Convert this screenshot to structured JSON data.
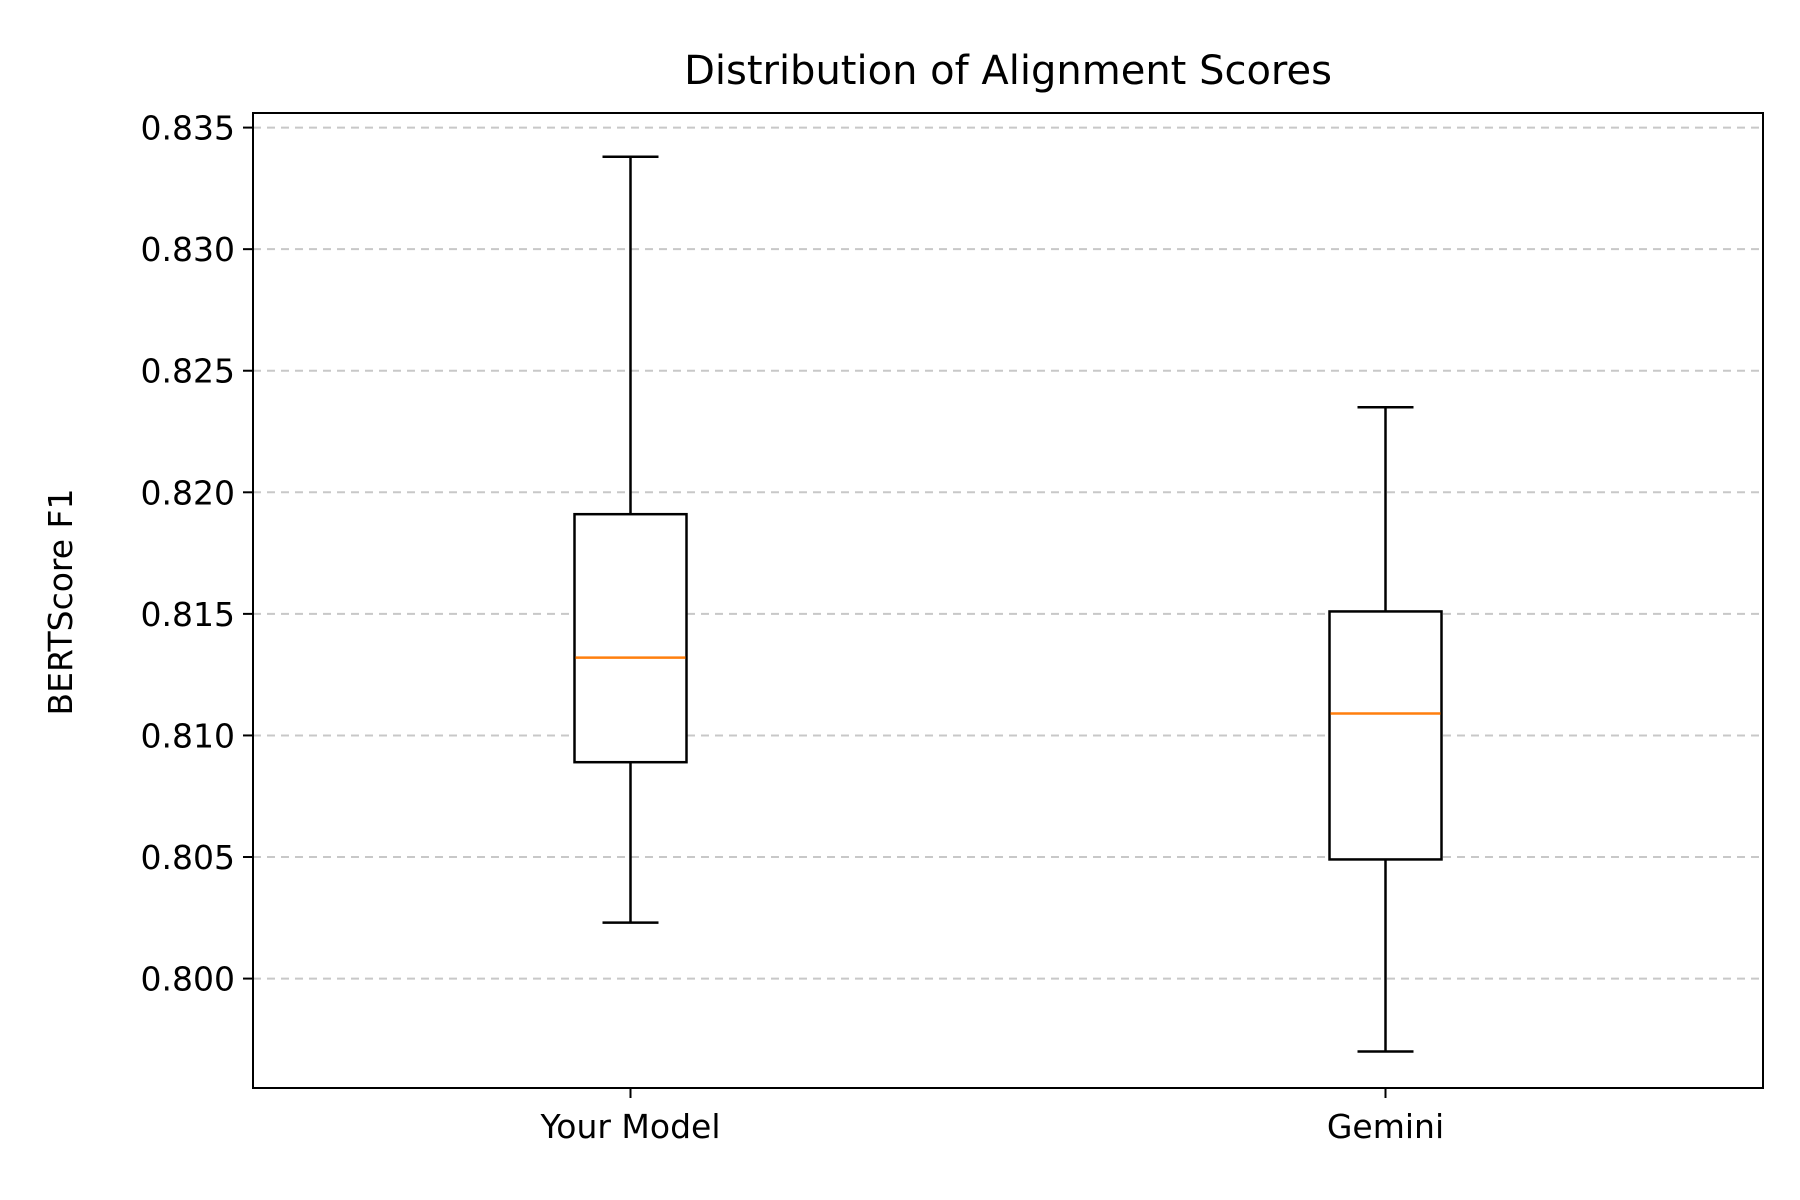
{
  "chart_data": {
    "type": "box",
    "title": "Distribution of Alignment Scores",
    "xlabel": "",
    "ylabel": "BERTScore F1",
    "categories": [
      "Your Model",
      "Gemini"
    ],
    "boxes": [
      {
        "category": "Your Model",
        "whisker_low": 0.8023,
        "q1": 0.8089,
        "median": 0.8132,
        "q3": 0.8191,
        "whisker_high": 0.8338
      },
      {
        "category": "Gemini",
        "whisker_low": 0.797,
        "q1": 0.8049,
        "median": 0.8109,
        "q3": 0.8151,
        "whisker_high": 0.8235
      }
    ],
    "ylim": [
      0.7955,
      0.8356
    ],
    "yticks": [
      0.8,
      0.805,
      0.81,
      0.815,
      0.82,
      0.825,
      0.83,
      0.835
    ],
    "ytick_labels": [
      "0.800",
      "0.805",
      "0.810",
      "0.815",
      "0.820",
      "0.825",
      "0.830",
      "0.835"
    ],
    "grid": {
      "y": true,
      "x": false,
      "style": "dashed"
    },
    "colors": {
      "box": "#000000",
      "median": "#ff7f0e",
      "grid": "#c8c8c8"
    }
  }
}
